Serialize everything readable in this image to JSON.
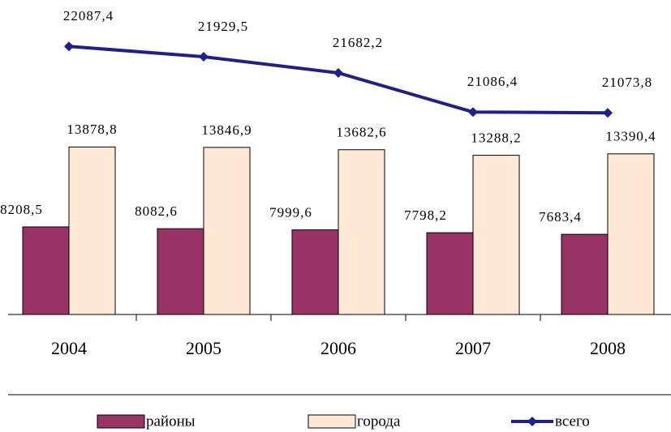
{
  "chart_data": {
    "type": "bar",
    "categories": [
      "2004",
      "2005",
      "2006",
      "2007",
      "2008"
    ],
    "series": [
      {
        "name": "районы",
        "type": "bar",
        "color": "#993366",
        "values": [
          8208.5,
          8082.6,
          7999.6,
          7798.2,
          7683.4
        ],
        "value_labels": [
          "8208,5",
          "8082,6",
          "7999,6",
          "7798,2",
          "7683,4"
        ]
      },
      {
        "name": "города",
        "type": "bar",
        "color": "#ffe9d6",
        "values": [
          13878.8,
          13846.9,
          13682.6,
          13288.2,
          13390.4
        ],
        "value_labels": [
          "13878,8",
          "13846,9",
          "13682,6",
          "13288,2",
          "13390,4"
        ]
      },
      {
        "name": "всего",
        "type": "line",
        "axis": "y2",
        "color": "#1f1f8f",
        "values": [
          22087.4,
          21929.5,
          21682.2,
          21086.4,
          21073.8
        ],
        "value_labels": [
          "22087,4",
          "21929,5",
          "21682,2",
          "21086,4",
          "21073,8"
        ]
      }
    ],
    "ylim": [
      2000,
      22000
    ],
    "y2lim": [
      18000,
      22300
    ]
  }
}
